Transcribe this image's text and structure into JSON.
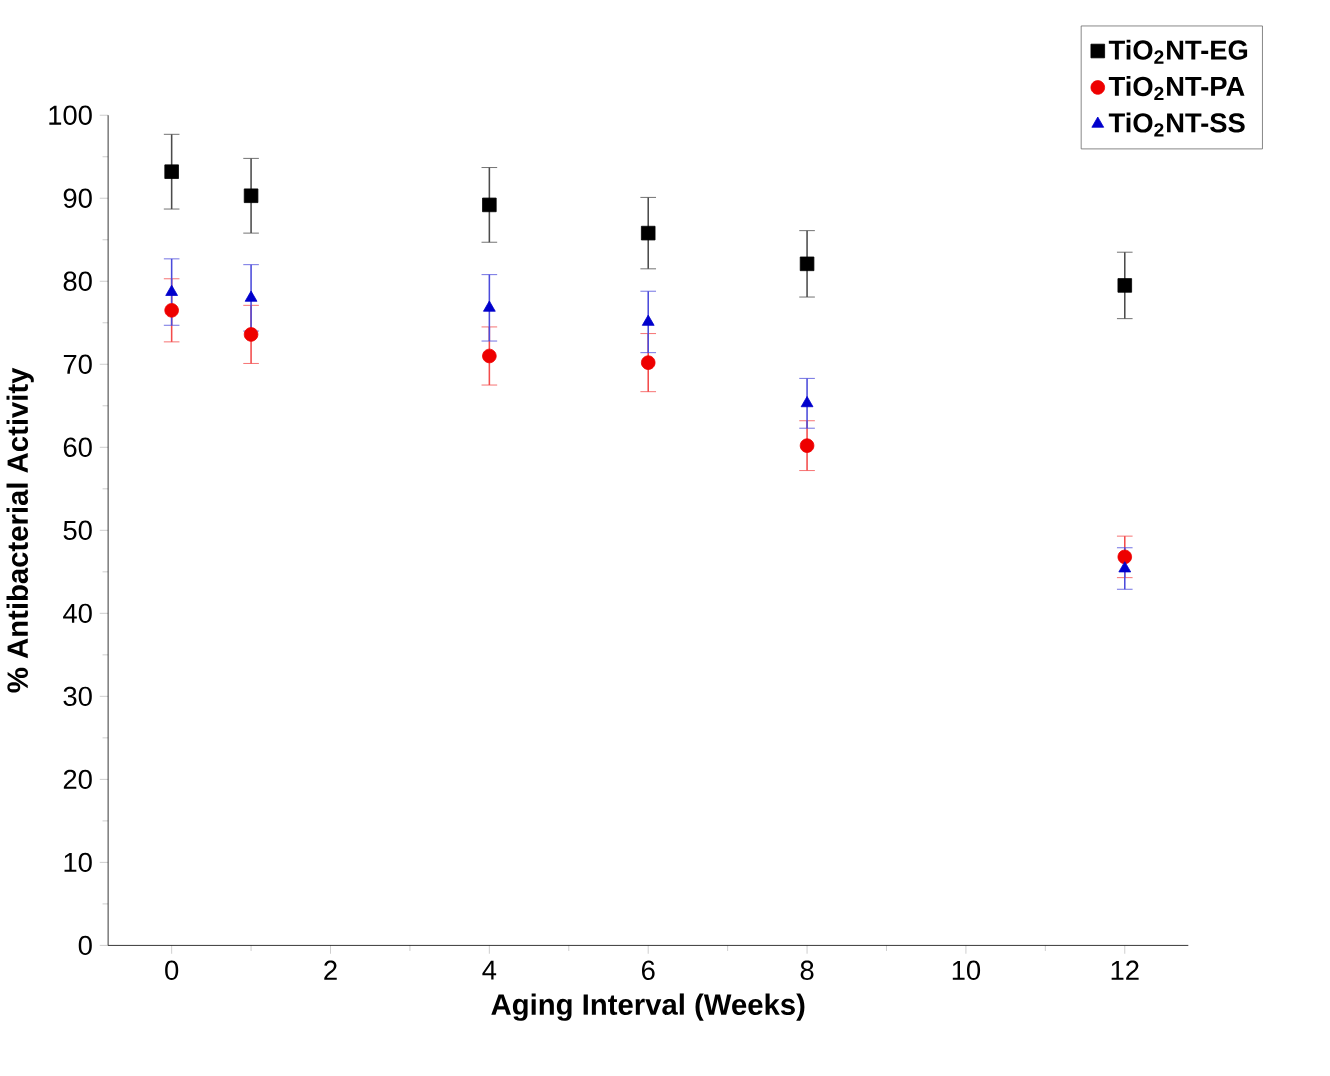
{
  "chart_data": {
    "type": "scatter",
    "xlabel": "Aging Interval (Weeks)",
    "ylabel": "% Antibacterial Activity",
    "x": [
      0,
      1,
      4,
      6,
      8,
      12
    ],
    "series": [
      {
        "name": "TiO$_{2}$NT-EG",
        "color": "#000000",
        "marker": "square",
        "values": [
          93.2,
          90.3,
          89.2,
          85.8,
          82.1,
          79.5
        ],
        "errors": [
          4.5,
          4.5,
          4.5,
          4.3,
          4,
          4
        ]
      },
      {
        "name": "TiO$_{2}$NT-PA",
        "color": "#ee0000",
        "marker": "circle",
        "values": [
          76.5,
          73.6,
          71.0,
          70.2,
          60.2,
          46.8
        ],
        "errors": [
          3.8,
          3.5,
          3.5,
          3.5,
          3,
          2.5
        ]
      },
      {
        "name": "TiO$_{2}$NT-SS",
        "color": "#0000cc",
        "marker": "triangle",
        "values": [
          78.7,
          78.0,
          76.8,
          75.1,
          65.3,
          45.4
        ],
        "errors": [
          4,
          4,
          4,
          3.7,
          3,
          2.5
        ]
      }
    ],
    "xlim": [
      -0.8,
      12.8
    ],
    "ylim": [
      0,
      100
    ],
    "xticks": [
      0,
      2,
      4,
      6,
      8,
      10,
      12
    ],
    "yticks": [
      0,
      10,
      20,
      30,
      40,
      50,
      60,
      70,
      80,
      90,
      100
    ],
    "grid": false,
    "legend": "top right"
  }
}
